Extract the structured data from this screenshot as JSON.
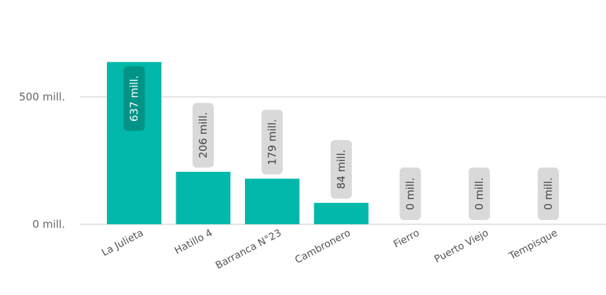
{
  "chart_data": {
    "type": "bar",
    "title": "",
    "xlabel": "",
    "ylabel": "",
    "categories": [
      "La Julieta",
      "Hatillo 4",
      "Barranca N°23",
      "Cambronero",
      "Fierro",
      "Puerto Viejo",
      "Tempisque"
    ],
    "values": [
      637,
      206,
      179,
      84,
      0,
      0,
      0
    ],
    "data_labels": [
      "637 mill.",
      "206 mill.",
      "179 mill.",
      "84 mill.",
      "0 mill.",
      "0 mill.",
      "0 mill."
    ],
    "y_ticks": [
      {
        "value": 0,
        "label": "0 mill."
      },
      {
        "value": 500,
        "label": "500 mill."
      }
    ],
    "ylim": [
      0,
      650
    ],
    "grid": true,
    "colors": {
      "bar": "#01B8AA",
      "grid": "#C8C8C8",
      "label_bg": "#D9D9D9",
      "label_bg_inside": "#019486"
    }
  }
}
